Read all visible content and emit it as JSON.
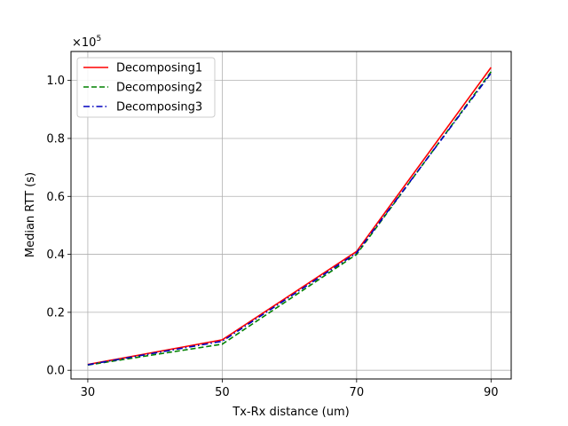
{
  "chart_data": {
    "type": "line",
    "title": "",
    "xlabel": "Tx-Rx distance (um)",
    "ylabel": "Median RTT (s)",
    "y_multiplier": {
      "base": "×10",
      "exponent": "5"
    },
    "x_ticks": [
      30,
      50,
      70,
      90
    ],
    "x_tick_labels": [
      "30",
      "50",
      "70",
      "90"
    ],
    "y_ticks": [
      0,
      0.2,
      0.4,
      0.6,
      0.8,
      1.0
    ],
    "y_tick_labels": [
      "0.0",
      "0.2",
      "0.4",
      "0.6",
      "0.8",
      "1.0"
    ],
    "xlim": [
      27.5,
      93
    ],
    "ylim": [
      -0.03,
      1.1
    ],
    "grid": true,
    "legend_position": "top-left",
    "series": [
      {
        "name": "Decomposing1",
        "color": "#ff0000",
        "dash": "solid",
        "x": [
          30,
          50,
          70,
          90
        ],
        "y": [
          0.02,
          0.105,
          0.41,
          1.045
        ]
      },
      {
        "name": "Decomposing2",
        "color": "#008000",
        "dash": "dashed",
        "x": [
          30,
          50,
          70,
          90
        ],
        "y": [
          0.018,
          0.09,
          0.4,
          1.03
        ]
      },
      {
        "name": "Decomposing3",
        "color": "#0000bf",
        "dash": "dashdot",
        "x": [
          30,
          50,
          70,
          90
        ],
        "y": [
          0.019,
          0.1,
          0.405,
          1.025
        ]
      }
    ]
  }
}
